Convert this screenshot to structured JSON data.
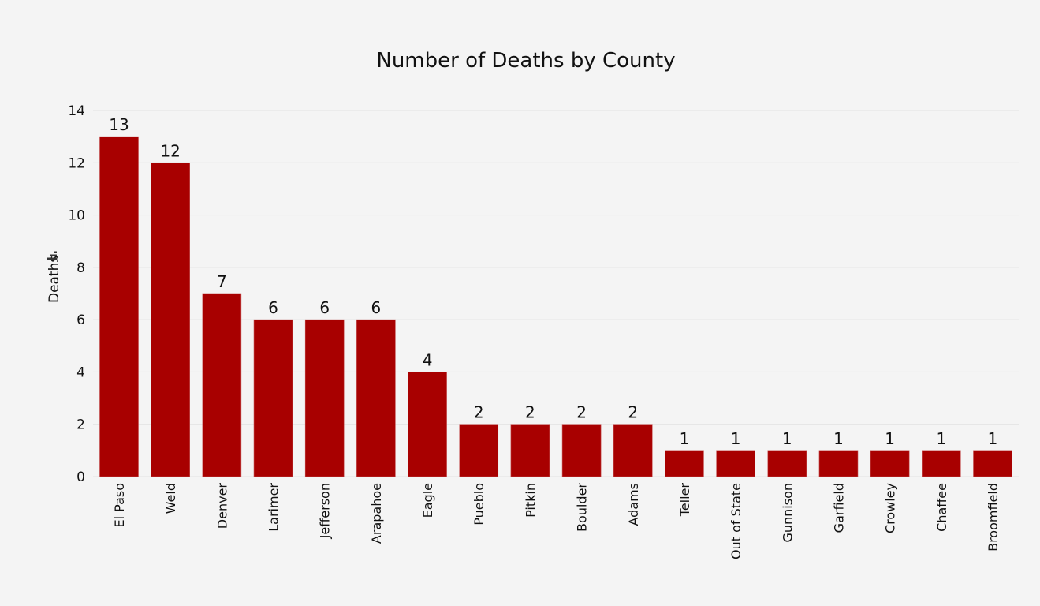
{
  "chart_data": {
    "type": "bar",
    "title": "Number of Deaths by County",
    "xlabel": "",
    "ylabel": "Deaths",
    "ylim": [
      0,
      14
    ],
    "yticks": [
      0,
      2,
      4,
      6,
      8,
      10,
      12,
      14
    ],
    "grid": true,
    "legend": "none",
    "bar_color": "#a80000",
    "data_labels": true,
    "categories": [
      "El Paso",
      "Weld",
      "Denver",
      "Larimer",
      "Jefferson",
      "Arapahoe",
      "Eagle",
      "Pueblo",
      "Pitkin",
      "Boulder",
      "Adams",
      "Teller",
      "Out of State",
      "Gunnison",
      "Garfield",
      "Crowley",
      "Chaffee",
      "Broomfield"
    ],
    "values": [
      13,
      12,
      7,
      6,
      6,
      6,
      4,
      2,
      2,
      2,
      2,
      1,
      1,
      1,
      1,
      1,
      1,
      1
    ]
  },
  "icons": {
    "ylabel_icon": "bar-chart-icon"
  }
}
